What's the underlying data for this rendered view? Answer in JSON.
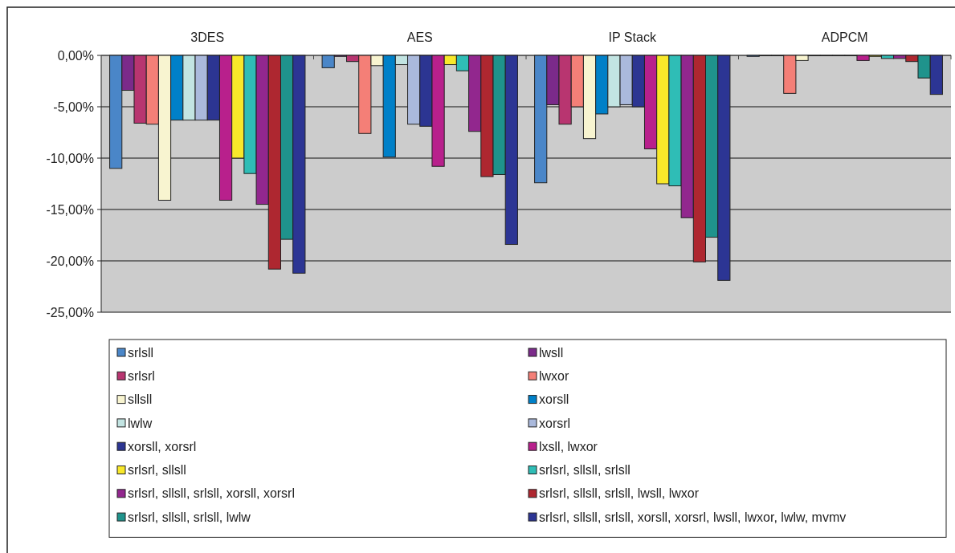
{
  "chart_data": {
    "type": "bar",
    "categories": [
      "3DES",
      "AES",
      "IP Stack",
      "ADPCM"
    ],
    "ylim": [
      -25,
      0
    ],
    "yticks": [
      {
        "value": 0,
        "label": "0,00%"
      },
      {
        "value": -5,
        "label": "-5,00%"
      },
      {
        "value": -10,
        "label": "-10,00%"
      },
      {
        "value": -15,
        "label": "-15,00%"
      },
      {
        "value": -20,
        "label": "-20,00%"
      },
      {
        "value": -25,
        "label": "-25,00%"
      }
    ],
    "grid": "y",
    "legend": "bottom",
    "series": [
      {
        "name": "srlsll",
        "color": "#4a86c8",
        "values": [
          -11.0,
          -1.2,
          -12.4,
          -0.1
        ]
      },
      {
        "name": "lwsll",
        "color": "#7b2a8a",
        "values": [
          -3.4,
          -0.1,
          -4.8,
          0
        ]
      },
      {
        "name": "srlsrl",
        "color": "#b83570",
        "values": [
          -6.6,
          -0.6,
          -6.7,
          0
        ]
      },
      {
        "name": "lwxor",
        "color": "#f47f77",
        "values": [
          -6.7,
          -7.6,
          -5.0,
          -3.7
        ]
      },
      {
        "name": "sllsll",
        "color": "#f8f4d0",
        "values": [
          -14.1,
          -1.0,
          -8.1,
          -0.5
        ]
      },
      {
        "name": "xorsll",
        "color": "#0080c8",
        "values": [
          -6.3,
          -9.9,
          -5.7,
          0
        ]
      },
      {
        "name": "lwlw",
        "color": "#c2e4e2",
        "values": [
          -6.3,
          -0.9,
          -5.0,
          0
        ]
      },
      {
        "name": "xorsrl",
        "color": "#aab9dc",
        "values": [
          -6.3,
          -6.7,
          -4.8,
          0
        ]
      },
      {
        "name": "xorsll, xorsrl",
        "color": "#2c3592",
        "values": [
          -6.3,
          -6.9,
          -5.0,
          0
        ]
      },
      {
        "name": "lxsll, lwxor",
        "color": "#b8208c",
        "values": [
          -14.1,
          -10.8,
          -9.1,
          -0.5
        ]
      },
      {
        "name": "srlsrl, sllsll",
        "color": "#f8e82a",
        "values": [
          -10.0,
          -0.9,
          -12.5,
          -0.1
        ]
      },
      {
        "name": "srlsrl, sllsll, srlsll",
        "color": "#2fbdb6",
        "values": [
          -11.5,
          -1.5,
          -12.7,
          -0.3
        ]
      },
      {
        "name": "srlsrl, sllsll, srlsll, xorsll, xorsrl",
        "color": "#92278e",
        "values": [
          -14.5,
          -7.4,
          -15.8,
          -0.3
        ]
      },
      {
        "name": "srlsrl, sllsll, srlsll, lwsll, lwxor",
        "color": "#ae2730",
        "values": [
          -20.8,
          -11.8,
          -20.1,
          -0.6
        ]
      },
      {
        "name": "srlsrl, sllsll, srlsll, lwlw",
        "color": "#1f938c",
        "values": [
          -17.9,
          -11.6,
          -17.7,
          -2.2
        ]
      },
      {
        "name": "srlsrl, sllsll, srlsll, xorsll, xorsrl, lwsll, lwxor, lwlw, mvmv",
        "color": "#2c3594",
        "values": [
          -21.2,
          -18.4,
          -21.9,
          -3.8
        ]
      }
    ]
  }
}
